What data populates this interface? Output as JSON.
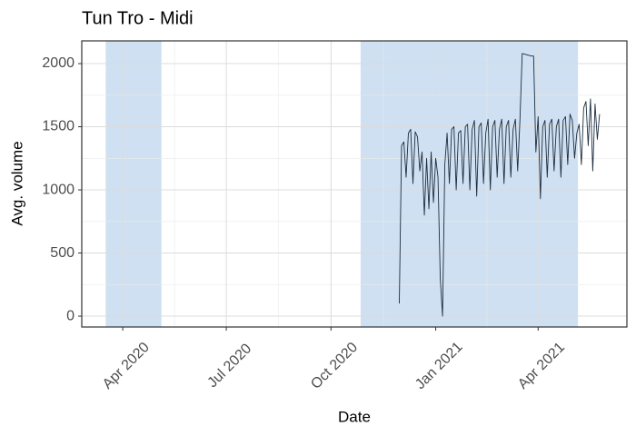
{
  "chart_data": {
    "type": "line",
    "title": "Tun Tro - Midi",
    "x_label": "Date",
    "y_label": "Avg. volume",
    "xlim": [
      "2020-02-25",
      "2021-06-18"
    ],
    "ylim": [
      -86,
      2180
    ],
    "xticks": [
      {
        "value": "2020-04-01",
        "label": "Apr 2020"
      },
      {
        "value": "2020-07-01",
        "label": "Jul 2020"
      },
      {
        "value": "2020-10-01",
        "label": "Oct 2020"
      },
      {
        "value": "2021-01-01",
        "label": "Jan 2021"
      },
      {
        "value": "2021-04-01",
        "label": "Apr 2021"
      }
    ],
    "yticks": [
      0,
      500,
      1000,
      1500,
      2000
    ],
    "grid": true,
    "shaded_regions": [
      {
        "start": "2020-03-17",
        "end": "2020-05-05"
      },
      {
        "start": "2020-10-27",
        "end": "2021-05-06"
      }
    ],
    "shade_color": "#c6dbef",
    "x": [
      "2020-11-30",
      "2020-12-02",
      "2020-12-04",
      "2020-12-06",
      "2020-12-08",
      "2020-12-10",
      "2020-12-12",
      "2020-12-14",
      "2020-12-16",
      "2020-12-18",
      "2020-12-20",
      "2020-12-22",
      "2020-12-24",
      "2020-12-26",
      "2020-12-28",
      "2020-12-30",
      "2021-01-01",
      "2021-01-03",
      "2021-01-05",
      "2021-01-07",
      "2021-01-09",
      "2021-01-11",
      "2021-01-13",
      "2021-01-15",
      "2021-01-17",
      "2021-01-19",
      "2021-01-21",
      "2021-01-23",
      "2021-01-25",
      "2021-01-27",
      "2021-01-29",
      "2021-01-31",
      "2021-02-02",
      "2021-02-04",
      "2021-02-06",
      "2021-02-08",
      "2021-02-10",
      "2021-02-12",
      "2021-02-14",
      "2021-02-16",
      "2021-02-18",
      "2021-02-20",
      "2021-02-22",
      "2021-02-24",
      "2021-02-26",
      "2021-02-28",
      "2021-03-02",
      "2021-03-04",
      "2021-03-06",
      "2021-03-08",
      "2021-03-10",
      "2021-03-12",
      "2021-03-14",
      "2021-03-16",
      "2021-03-18",
      "2021-03-20",
      "2021-03-22",
      "2021-03-24",
      "2021-03-26",
      "2021-03-28",
      "2021-03-30",
      "2021-04-01",
      "2021-04-03",
      "2021-04-05",
      "2021-04-07",
      "2021-04-09",
      "2021-04-11",
      "2021-04-13",
      "2021-04-15",
      "2021-04-17",
      "2021-04-19",
      "2021-04-21",
      "2021-04-23",
      "2021-04-25",
      "2021-04-27",
      "2021-04-29",
      "2021-05-01",
      "2021-05-03",
      "2021-05-05",
      "2021-05-07",
      "2021-05-09",
      "2021-05-11",
      "2021-05-13",
      "2021-05-15",
      "2021-05-17",
      "2021-05-19",
      "2021-05-21",
      "2021-05-23",
      "2021-05-25"
    ],
    "series": [
      {
        "name": "Avg. volume",
        "color": "#1c2e40",
        "values": [
          100,
          1350,
          1380,
          1100,
          1450,
          1480,
          1050,
          1460,
          1420,
          1150,
          1300,
          800,
          1250,
          850,
          1300,
          900,
          1250,
          1100,
          300,
          0,
          1200,
          1450,
          1050,
          1480,
          1500,
          1000,
          1450,
          1470,
          1050,
          1500,
          1520,
          1000,
          1480,
          1550,
          950,
          1500,
          1530,
          1050,
          1450,
          1560,
          1000,
          1500,
          1550,
          1100,
          1480,
          1560,
          1050,
          1500,
          1550,
          1100,
          1480,
          1560,
          1150,
          1550,
          2080,
          2075,
          2070,
          2065,
          2060,
          2060,
          1300,
          1580,
          930,
          1500,
          1550,
          1100,
          1520,
          1560,
          1150,
          1500,
          1560,
          1100,
          1550,
          1580,
          1200,
          1600,
          1550,
          1250,
          1450,
          1520,
          1200,
          1650,
          1700,
          1350,
          1720,
          1150,
          1680,
          1400,
          1600
        ]
      }
    ]
  }
}
